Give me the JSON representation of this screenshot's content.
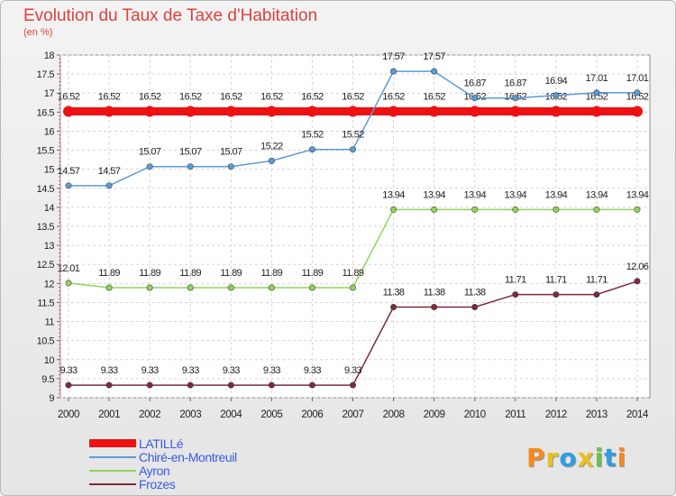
{
  "chart_data": {
    "type": "line",
    "title": "Evolution du Taux de Taxe d'Habitation",
    "subtitle": "(en %)",
    "x": [
      "2000",
      "2001",
      "2002",
      "2003",
      "2004",
      "2005",
      "2006",
      "2007",
      "2008",
      "2009",
      "2010",
      "2011",
      "2012",
      "2013",
      "2014"
    ],
    "ylim": [
      9,
      18
    ],
    "yticks": [
      "9",
      "9.5",
      "10",
      "10.5",
      "11",
      "11.5",
      "12",
      "12.5",
      "13",
      "13.5",
      "14",
      "14.5",
      "15",
      "15.5",
      "16",
      "16.5",
      "17",
      "17.5",
      "18"
    ],
    "grid": true,
    "legend_position": "bottom-left",
    "series": [
      {
        "name": "LATILLé",
        "color": "#ee1111",
        "values": [
          16.52,
          16.52,
          16.52,
          16.52,
          16.52,
          16.52,
          16.52,
          16.52,
          16.52,
          16.52,
          16.52,
          16.52,
          16.52,
          16.52,
          16.52
        ],
        "labels": [
          "16.52",
          "16.52",
          "16.52",
          "16.52",
          "16.52",
          "16.52",
          "16.52",
          "16.52",
          "16.52",
          "16.52",
          "16.52",
          "16.52",
          "16.52",
          "16.52",
          "16.52"
        ]
      },
      {
        "name": "Chiré-en-Montreuil",
        "color": "#5b9bd5",
        "values": [
          14.57,
          14.57,
          15.07,
          15.07,
          15.07,
          15.22,
          15.52,
          15.52,
          17.57,
          17.57,
          16.87,
          16.87,
          16.94,
          17.01,
          17.01
        ],
        "labels": [
          "14.57",
          "14.57",
          "15.07",
          "15.07",
          "15.07",
          "15.22",
          "15.52",
          "15.52",
          "17.57",
          "17.57",
          "16.87",
          "16.87",
          "16.94",
          "17.01",
          "17.01"
        ]
      },
      {
        "name": "Ayron",
        "color": "#90d35b",
        "values": [
          12.01,
          11.89,
          11.89,
          11.89,
          11.89,
          11.89,
          11.89,
          11.89,
          13.94,
          13.94,
          13.94,
          13.94,
          13.94,
          13.94,
          13.94
        ],
        "labels": [
          "12.01",
          "11.89",
          "11.89",
          "11.89",
          "11.89",
          "11.89",
          "11.89",
          "11.89",
          "13.94",
          "13.94",
          "13.94",
          "13.94",
          "13.94",
          "13.94",
          "13.94"
        ]
      },
      {
        "name": "Frozes",
        "color": "#7b2c37",
        "values": [
          9.33,
          9.33,
          9.33,
          9.33,
          9.33,
          9.33,
          9.33,
          9.33,
          11.38,
          11.38,
          11.38,
          11.71,
          11.71,
          11.71,
          12.06
        ],
        "labels": [
          "9.33",
          "9.33",
          "9.33",
          "9.33",
          "9.33",
          "9.33",
          "9.33",
          "9.33",
          "11.38",
          "11.38",
          "11.38",
          "11.71",
          "11.71",
          "11.71",
          "12.06"
        ]
      }
    ]
  },
  "logo": {
    "letters": [
      "P",
      "r",
      "o",
      "x",
      "i",
      "t",
      "i"
    ],
    "colors": [
      "#f28b1e",
      "#e8c21c",
      "#2f9ee0",
      "#e8c21c",
      "#6cc04a",
      "#2f9ee0",
      "#f28b1e"
    ]
  }
}
